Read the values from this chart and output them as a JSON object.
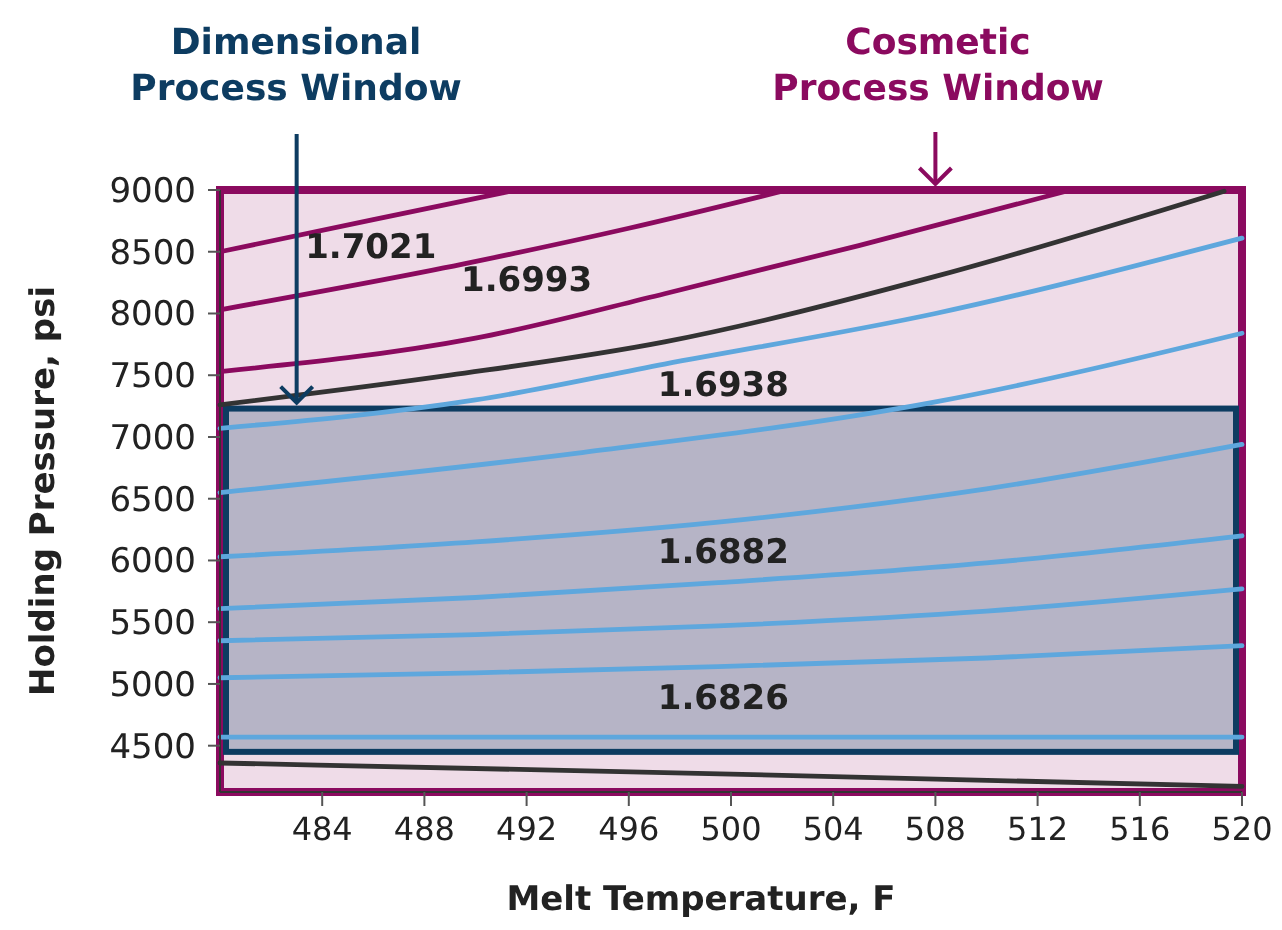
{
  "chart_data": {
    "type": "line",
    "xlabel": "Melt Temperature, F",
    "ylabel": "Holding Pressure, psi",
    "xlim": [
      480,
      520
    ],
    "ylim": [
      4125,
      9000
    ],
    "xticks": [
      484,
      488,
      492,
      496,
      500,
      504,
      508,
      512,
      516,
      520
    ],
    "yticks": [
      4500,
      5000,
      5500,
      6000,
      6500,
      7000,
      7500,
      8000,
      8500,
      9000
    ],
    "grid": false,
    "line_style": "solid",
    "series": [
      {
        "color": "#8b0a5f",
        "x": [
          480,
          486,
          491.6
        ],
        "values": [
          8500,
          8760,
          9000
        ]
      },
      {
        "color": "#8b0a5f",
        "x": [
          480,
          489.5,
          496,
          502.2
        ],
        "values": [
          8030,
          8400,
          8690,
          9000
        ]
      },
      {
        "color": "#8b0a5f",
        "x": [
          480,
          490,
          497.4,
          505,
          513.3
        ],
        "values": [
          7530,
          7800,
          8160,
          8550,
          9000
        ]
      },
      {
        "color": "#333333",
        "x": [
          480,
          489,
          497.4,
          508,
          519.3
        ],
        "values": [
          7260,
          7500,
          7770,
          8300,
          8990
        ]
      },
      {
        "color": "#5ea7dd",
        "x": [
          480,
          490,
          497.4,
          508,
          520
        ],
        "values": [
          7070,
          7300,
          7590,
          8000,
          8610
        ]
      },
      {
        "color": "#5ea7dd",
        "x": [
          480,
          494,
          507.9,
          520
        ],
        "values": [
          6550,
          6870,
          7280,
          7840
        ]
      },
      {
        "color": "#5ea7dd",
        "x": [
          480,
          490,
          499.5,
          510,
          520
        ],
        "values": [
          6030,
          6150,
          6310,
          6580,
          6940
        ]
      },
      {
        "color": "#5ea7dd",
        "x": [
          480,
          490,
          499.5,
          510,
          520
        ],
        "values": [
          5610,
          5700,
          5820,
          5980,
          6200
        ]
      },
      {
        "color": "#5ea7dd",
        "x": [
          480,
          490,
          499.5,
          510,
          520
        ],
        "values": [
          5350,
          5400,
          5470,
          5590,
          5770
        ]
      },
      {
        "color": "#5ea7dd",
        "x": [
          480,
          490,
          499.5,
          510,
          520
        ],
        "values": [
          5050,
          5090,
          5140,
          5210,
          5310
        ]
      },
      {
        "color": "#5ea7dd",
        "x": [
          480,
          520
        ],
        "values": [
          4570,
          4570
        ]
      },
      {
        "color": "#333333",
        "x": [
          480,
          500,
          520
        ],
        "values": [
          4360,
          4270,
          4170
        ]
      }
    ],
    "bands": [
      {
        "axis": "y",
        "from": 4125,
        "to": 9000,
        "color": "#8b0a5f"
      },
      {
        "axis": "y",
        "from": 4450,
        "to": 7230,
        "color": "#0d3c61"
      }
    ],
    "annotations": [
      {
        "text": "Dimensional Process Window",
        "x": 483,
        "y": 7230
      },
      {
        "text": "Cosmetic Process Window",
        "x": 508,
        "y": 9000
      },
      {
        "text": "1.7021",
        "x": 485.9,
        "y": 8790
      },
      {
        "text": "1.6993",
        "x": 492,
        "y": 8520
      },
      {
        "text": "1.6938",
        "x": 499.7,
        "y": 7670
      },
      {
        "text": "1.6882",
        "x": 499.7,
        "y": 6320
      },
      {
        "text": "1.6826",
        "x": 499.7,
        "y": 5140
      }
    ]
  }
}
